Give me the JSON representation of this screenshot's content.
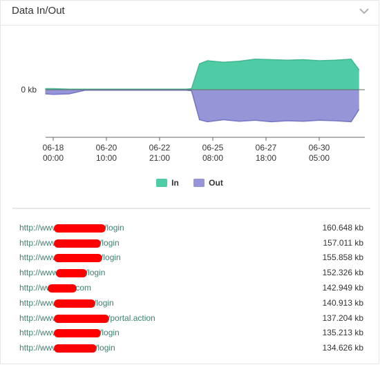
{
  "panel": {
    "title": "Data In/Out",
    "collapse_icon": "chevron-down-icon"
  },
  "chart_data": {
    "type": "area",
    "y_tick_label": "0 kb",
    "x_ticks": [
      "06-18\n00:00",
      "06-20\n10:00",
      "06-22\n21:00",
      "06-25\n08:00",
      "06-27\n18:00",
      "06-30\n05:00"
    ],
    "x_tick_positions": [
      0,
      1,
      2,
      3,
      4,
      5
    ],
    "x_range": [
      -0.15,
      5.75
    ],
    "y_range": [
      -100,
      100
    ],
    "series": [
      {
        "name": "In",
        "color": "#4fcba5",
        "x": [
          -0.15,
          0.0,
          0.3,
          0.6,
          1.0,
          1.5,
          2.0,
          2.5,
          2.6,
          2.75,
          2.9,
          3.2,
          3.5,
          3.8,
          4.1,
          4.4,
          4.7,
          5.0,
          5.3,
          5.6,
          5.75
        ],
        "values": [
          2,
          2,
          1,
          1,
          1,
          1,
          1,
          1,
          2,
          50,
          56,
          53,
          55,
          59,
          58,
          57,
          58,
          56,
          57,
          59,
          38
        ]
      },
      {
        "name": "Out",
        "color": "#9595d8",
        "x": [
          -0.15,
          0.0,
          0.3,
          0.6,
          1.0,
          1.5,
          2.0,
          2.5,
          2.6,
          2.75,
          2.9,
          3.2,
          3.5,
          3.8,
          4.1,
          4.4,
          4.7,
          5.0,
          5.3,
          5.6,
          5.75
        ],
        "values": [
          -8,
          -9,
          -8,
          -1,
          -1,
          -1,
          -1,
          -1,
          -2,
          -58,
          -62,
          -58,
          -61,
          -59,
          -62,
          -60,
          -61,
          -59,
          -60,
          -62,
          -38
        ]
      }
    ],
    "legend": {
      "position": "bottom"
    }
  },
  "url_list": [
    {
      "prefix": "http://www",
      "suffix": "/login",
      "value": "160.648 kb"
    },
    {
      "prefix": "http://www",
      "suffix": "/login",
      "value": "157.011 kb"
    },
    {
      "prefix": "http://www",
      "suffix": "/login",
      "value": "155.858 kb"
    },
    {
      "prefix": "http://www.",
      "suffix": "/login",
      "value": "152.326 kb"
    },
    {
      "prefix": "http://ww",
      "suffix": "com",
      "value": "142.949 kb"
    },
    {
      "prefix": "http://www",
      "suffix": "/login",
      "value": "140.913 kb"
    },
    {
      "prefix": "http://www",
      "suffix": "/portal.action",
      "value": "137.204 kb"
    },
    {
      "prefix": "http://www",
      "suffix": "/login",
      "value": "135.213 kb"
    },
    {
      "prefix": "http://www",
      "suffix": "/login",
      "value": "134.626 kb"
    }
  ]
}
